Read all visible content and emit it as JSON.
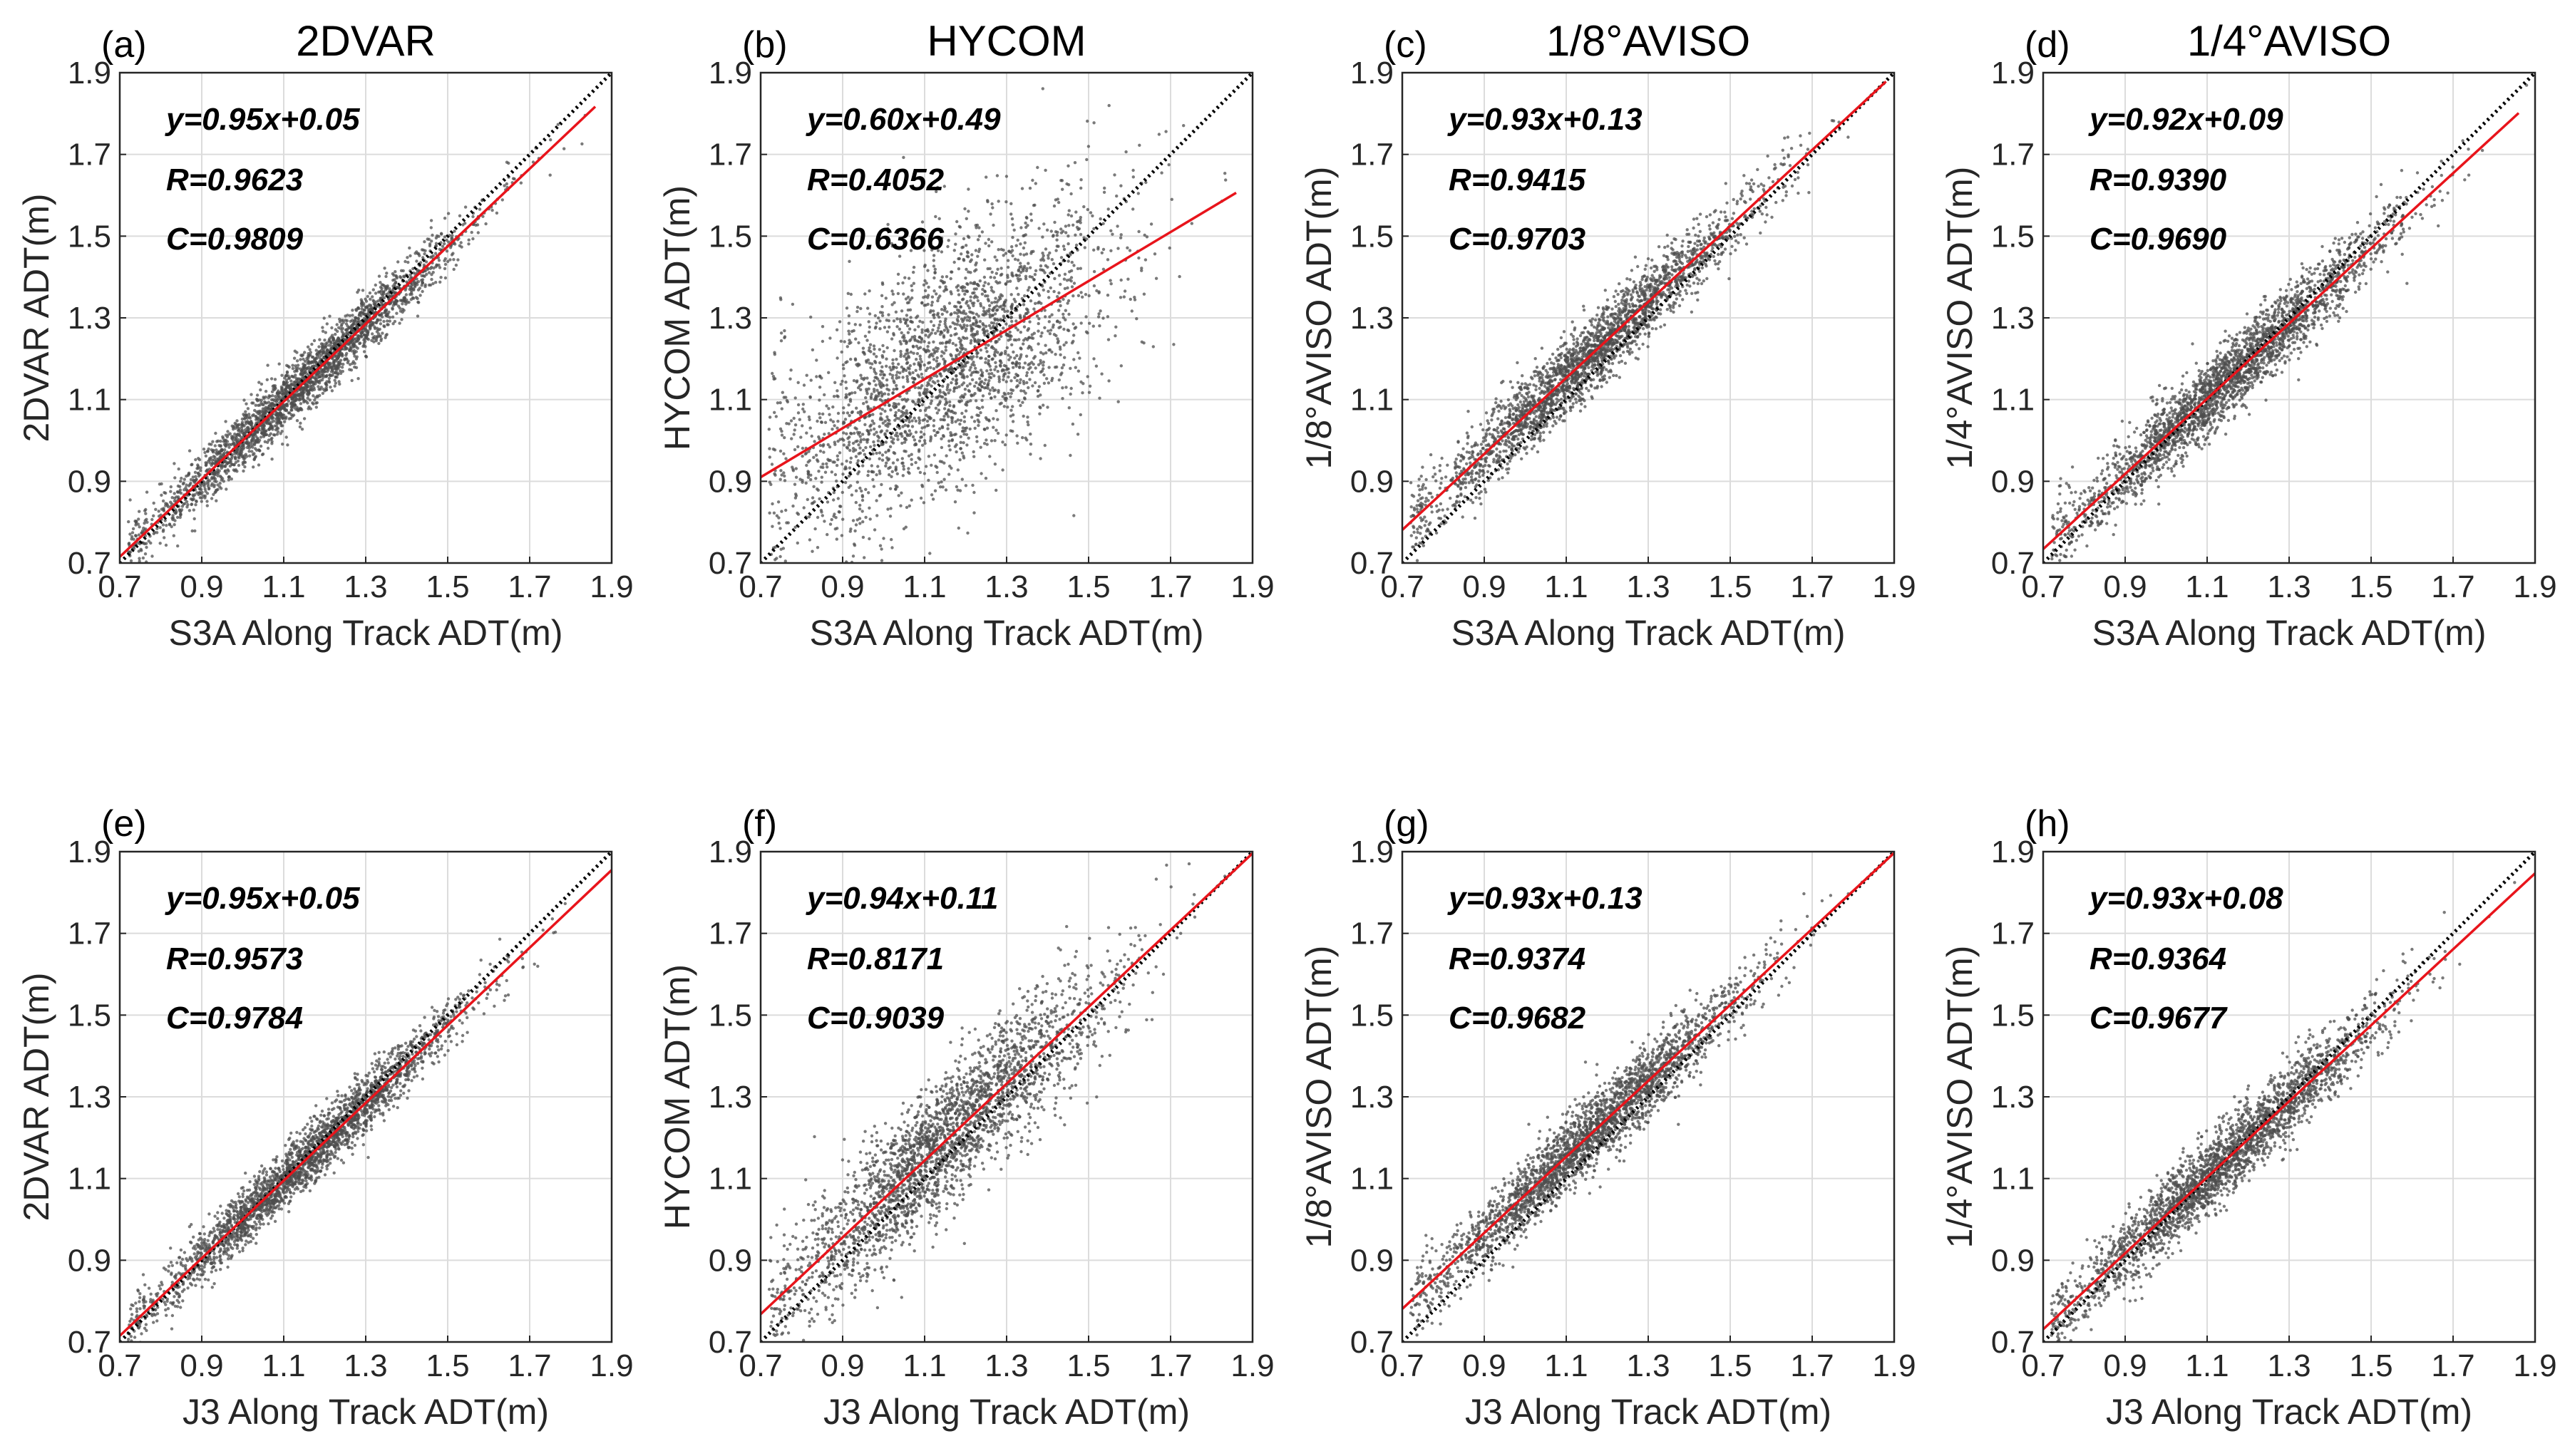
{
  "chart_data": [
    {
      "type": "scatter",
      "panel_label": "(a)",
      "title": "2DVAR",
      "xlabel": "S3A Along Track ADT(m)",
      "ylabel": "2DVAR ADT(m)",
      "xlim": [
        0.7,
        1.9
      ],
      "ylim": [
        0.7,
        1.9
      ],
      "ticks": [
        "0.7",
        "0.9",
        "1.1",
        "1.3",
        "1.5",
        "1.7",
        "1.9"
      ],
      "fit": {
        "slope": 0.95,
        "intercept": 0.05,
        "x_range": [
          0.7,
          1.86
        ]
      },
      "spread": 0.035,
      "x_mean": 1.15,
      "x_sd": 0.2,
      "stats": {
        "equation": "y=0.95x+0.05",
        "r": "R=0.9623",
        "c": "C=0.9809"
      }
    },
    {
      "type": "scatter",
      "panel_label": "(b)",
      "title": "HYCOM",
      "xlabel": "S3A Along Track ADT(m)",
      "ylabel": "HYCOM ADT(m)",
      "xlim": [
        0.7,
        1.9
      ],
      "ylim": [
        0.7,
        1.9
      ],
      "ticks": [
        "0.7",
        "0.9",
        "1.1",
        "1.3",
        "1.5",
        "1.7",
        "1.9"
      ],
      "fit": {
        "slope": 0.6,
        "intercept": 0.49,
        "x_range": [
          0.7,
          1.86
        ]
      },
      "spread": 0.15,
      "x_mean": 1.15,
      "x_sd": 0.2,
      "stats": {
        "equation": "y=0.60x+0.49",
        "r": "R=0.4052",
        "c": "C=0.6366"
      }
    },
    {
      "type": "scatter",
      "panel_label": "(c)",
      "title": "1/8°AVISO",
      "xlabel": "S3A Along Track ADT(m)",
      "ylabel": "1/8°AVISO ADT(m)",
      "xlim": [
        0.7,
        1.9
      ],
      "ylim": [
        0.7,
        1.9
      ],
      "ticks": [
        "0.7",
        "0.9",
        "1.1",
        "1.3",
        "1.5",
        "1.7",
        "1.9"
      ],
      "fit": {
        "slope": 0.93,
        "intercept": 0.13,
        "x_range": [
          0.7,
          1.88
        ]
      },
      "spread": 0.045,
      "x_mean": 1.15,
      "x_sd": 0.2,
      "stats": {
        "equation": "y=0.93x+0.13",
        "r": "R=0.9415",
        "c": "C=0.9703"
      }
    },
    {
      "type": "scatter",
      "panel_label": "(d)",
      "title": "1/4°AVISO",
      "xlabel": "S3A Along Track ADT(m)",
      "ylabel": "1/4°AVISO ADT(m)",
      "xlim": [
        0.7,
        1.9
      ],
      "ylim": [
        0.7,
        1.9
      ],
      "ticks": [
        "0.7",
        "0.9",
        "1.1",
        "1.3",
        "1.5",
        "1.7",
        "1.9"
      ],
      "fit": {
        "slope": 0.92,
        "intercept": 0.09,
        "x_range": [
          0.7,
          1.86
        ]
      },
      "spread": 0.045,
      "x_mean": 1.15,
      "x_sd": 0.2,
      "stats": {
        "equation": "y=0.92x+0.09",
        "r": "R=0.9390",
        "c": "C=0.9690"
      }
    },
    {
      "type": "scatter",
      "panel_label": "(e)",
      "title": "",
      "xlabel": "J3 Along Track ADT(m)",
      "ylabel": "2DVAR ADT(m)",
      "xlim": [
        0.7,
        1.9
      ],
      "ylim": [
        0.7,
        1.9
      ],
      "ticks": [
        "0.7",
        "0.9",
        "1.1",
        "1.3",
        "1.5",
        "1.7",
        "1.9"
      ],
      "fit": {
        "slope": 0.95,
        "intercept": 0.05,
        "x_range": [
          0.7,
          1.9
        ]
      },
      "spread": 0.035,
      "x_mean": 1.15,
      "x_sd": 0.2,
      "stats": {
        "equation": "y=0.95x+0.05",
        "r": "R=0.9573",
        "c": "C=0.9784"
      }
    },
    {
      "type": "scatter",
      "panel_label": "(f)",
      "title": "",
      "xlabel": "J3 Along Track ADT(m)",
      "ylabel": "HYCOM ADT(m)",
      "xlim": [
        0.7,
        1.9
      ],
      "ylim": [
        0.7,
        1.9
      ],
      "ticks": [
        "0.7",
        "0.9",
        "1.1",
        "1.3",
        "1.5",
        "1.7",
        "1.9"
      ],
      "fit": {
        "slope": 0.94,
        "intercept": 0.11,
        "x_range": [
          0.7,
          1.9
        ]
      },
      "spread": 0.08,
      "x_mean": 1.15,
      "x_sd": 0.2,
      "stats": {
        "equation": "y=0.94x+0.11",
        "r": "R=0.8171",
        "c": "C=0.9039"
      }
    },
    {
      "type": "scatter",
      "panel_label": "(g)",
      "title": "",
      "xlabel": "J3 Along Track ADT(m)",
      "ylabel": "1/8°AVISO ADT(m)",
      "xlim": [
        0.7,
        1.9
      ],
      "ylim": [
        0.7,
        1.9
      ],
      "ticks": [
        "0.7",
        "0.9",
        "1.1",
        "1.3",
        "1.5",
        "1.7",
        "1.9"
      ],
      "fit": {
        "slope": 0.93,
        "intercept": 0.13,
        "x_range": [
          0.7,
          1.9
        ]
      },
      "spread": 0.045,
      "x_mean": 1.15,
      "x_sd": 0.2,
      "stats": {
        "equation": "y=0.93x+0.13",
        "r": "R=0.9374",
        "c": "C=0.9682"
      }
    },
    {
      "type": "scatter",
      "panel_label": "(h)",
      "title": "",
      "xlabel": "J3 Along Track ADT(m)",
      "ylabel": "1/4°AVISO ADT(m)",
      "xlim": [
        0.7,
        1.9
      ],
      "ylim": [
        0.7,
        1.9
      ],
      "ticks": [
        "0.7",
        "0.9",
        "1.1",
        "1.3",
        "1.5",
        "1.7",
        "1.9"
      ],
      "fit": {
        "slope": 0.93,
        "intercept": 0.08,
        "x_range": [
          0.7,
          1.9
        ]
      },
      "spread": 0.045,
      "x_mean": 1.15,
      "x_sd": 0.2,
      "stats": {
        "equation": "y=0.93x+0.08",
        "r": "R=0.9364",
        "c": "C=0.9677"
      }
    }
  ],
  "colors": {
    "fit_line": "#e8141b",
    "one_to_one": "#000000",
    "points": "#4d4d4d",
    "grid": "#dcdcdc",
    "axis": "#262626"
  },
  "legend_lines": {
    "fit": "red regression line",
    "reference": "black dotted 1:1 line"
  }
}
